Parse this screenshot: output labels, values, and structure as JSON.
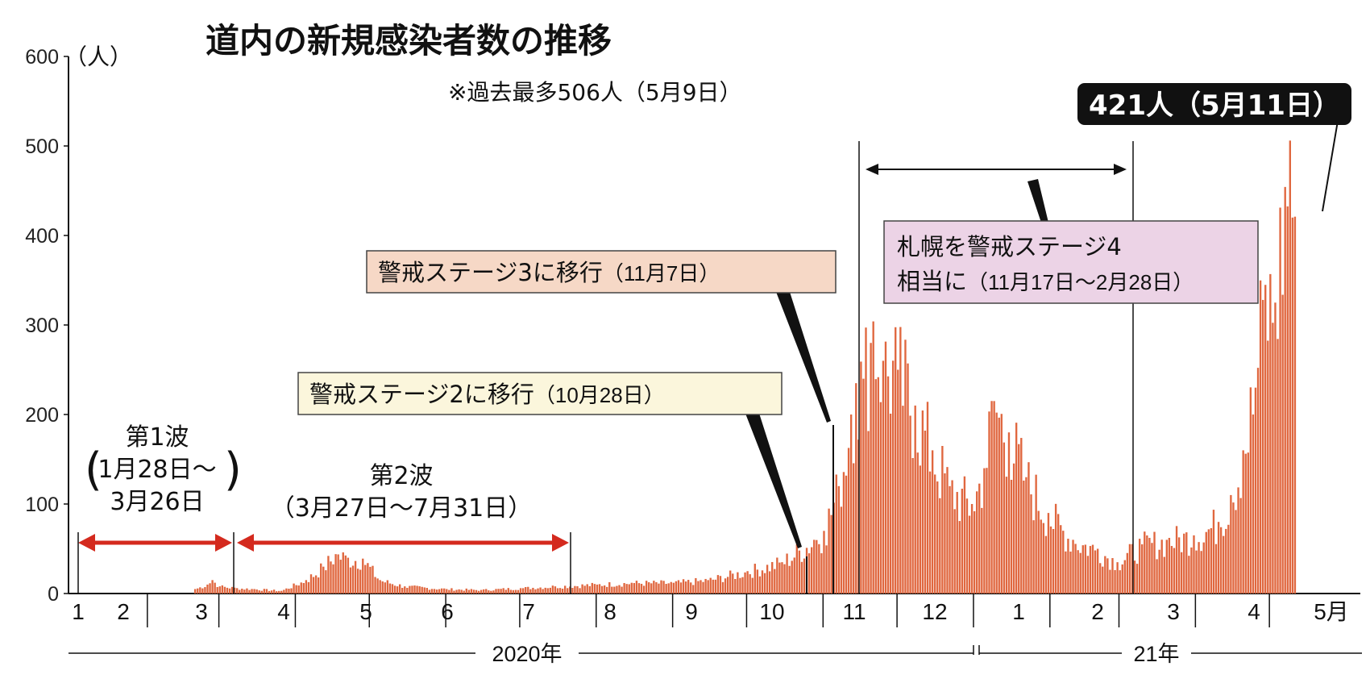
{
  "title": "道内の新規感染者数の推移",
  "unit_label": "（人）",
  "record_note": "※過去最多506人（5月9日）",
  "peak_callout": "421人（5月11日）",
  "annotations": {
    "stage2_main": "警戒ステージ2に移行",
    "stage2_date": "（10月28日）",
    "stage3_main": "警戒ステージ3に移行",
    "stage3_date": "（11月7日）",
    "stage4_line1": "札幌を警戒ステージ4",
    "stage4_line2_main": "相当に",
    "stage4_line2_date": "（11月17日～2月28日）",
    "wave1_title": "第1波",
    "wave1_range_a": "1月28日～",
    "wave1_range_b": "3月26日",
    "wave2_title": "第2波",
    "wave2_range": "（3月27日～7月31日）"
  },
  "y_ticks": [
    "0",
    "100",
    "200",
    "300",
    "400",
    "500",
    "600"
  ],
  "x_months": [
    "1",
    "2",
    "3",
    "4",
    "5",
    "6",
    "7",
    "8",
    "9",
    "10",
    "11",
    "12",
    "1",
    "2",
    "3",
    "4",
    "5月"
  ],
  "years": [
    "2020年",
    "21年"
  ],
  "colors": {
    "bar": "#e0673f",
    "arrow": "#d42a1e",
    "stage2_box": "#fbf6dc",
    "stage3_box": "#f6d8c6",
    "stage4_box": "#ecd3e6",
    "callout": "#111111"
  },
  "chart_data": {
    "type": "bar",
    "title": "道内の新規感染者数の推移",
    "ylabel": "（人）",
    "ylim": [
      0,
      600
    ],
    "y_ticks": [
      0,
      100,
      200,
      300,
      400,
      500,
      600
    ],
    "x_axis": "daily, 2020-01-28 to 2021-05-11",
    "x_start": "2020-01-01",
    "x_end": "2021-05-15",
    "series": [
      {
        "values_by_date": [
          {
            "x": "2020-02-20",
            "y": 5
          },
          {
            "x": "2020-02-25",
            "y": 10
          },
          {
            "x": "2020-02-27",
            "y": 15
          },
          {
            "x": "2020-03-01",
            "y": 8
          },
          {
            "x": "2020-03-08",
            "y": 6
          },
          {
            "x": "2020-03-15",
            "y": 5
          },
          {
            "x": "2020-03-26",
            "y": 3
          },
          {
            "x": "2020-04-05",
            "y": 15
          },
          {
            "x": "2020-04-12",
            "y": 30
          },
          {
            "x": "2020-04-17",
            "y": 44
          },
          {
            "x": "2020-04-22",
            "y": 40
          },
          {
            "x": "2020-04-28",
            "y": 39
          },
          {
            "x": "2020-05-05",
            "y": 15
          },
          {
            "x": "2020-05-15",
            "y": 8
          },
          {
            "x": "2020-06-01",
            "y": 5
          },
          {
            "x": "2020-06-15",
            "y": 4
          },
          {
            "x": "2020-07-01",
            "y": 6
          },
          {
            "x": "2020-07-15",
            "y": 8
          },
          {
            "x": "2020-08-01",
            "y": 10
          },
          {
            "x": "2020-08-15",
            "y": 12
          },
          {
            "x": "2020-09-01",
            "y": 12
          },
          {
            "x": "2020-09-15",
            "y": 15
          },
          {
            "x": "2020-10-01",
            "y": 25
          },
          {
            "x": "2020-10-15",
            "y": 35
          },
          {
            "x": "2020-10-28",
            "y": 60
          },
          {
            "x": "2020-11-01",
            "y": 70
          },
          {
            "x": "2020-11-07",
            "y": 120
          },
          {
            "x": "2020-11-12",
            "y": 200
          },
          {
            "x": "2020-11-14",
            "y": 235
          },
          {
            "x": "2020-11-17",
            "y": 240
          },
          {
            "x": "2020-11-21",
            "y": 304
          },
          {
            "x": "2020-11-25",
            "y": 260
          },
          {
            "x": "2020-12-01",
            "y": 250
          },
          {
            "x": "2020-12-08",
            "y": 210
          },
          {
            "x": "2020-12-15",
            "y": 160
          },
          {
            "x": "2020-12-22",
            "y": 120
          },
          {
            "x": "2020-12-31",
            "y": 100
          },
          {
            "x": "2021-01-05",
            "y": 140
          },
          {
            "x": "2021-01-09",
            "y": 215
          },
          {
            "x": "2021-01-15",
            "y": 180
          },
          {
            "x": "2021-01-22",
            "y": 130
          },
          {
            "x": "2021-01-31",
            "y": 90
          },
          {
            "x": "2021-02-10",
            "y": 60
          },
          {
            "x": "2021-02-20",
            "y": 50
          },
          {
            "x": "2021-02-28",
            "y": 35
          },
          {
            "x": "2021-03-10",
            "y": 55
          },
          {
            "x": "2021-03-20",
            "y": 60
          },
          {
            "x": "2021-03-31",
            "y": 65
          },
          {
            "x": "2021-04-10",
            "y": 80
          },
          {
            "x": "2021-04-15",
            "y": 110
          },
          {
            "x": "2021-04-20",
            "y": 160
          },
          {
            "x": "2021-04-25",
            "y": 230
          },
          {
            "x": "2021-04-28",
            "y": 328
          },
          {
            "x": "2021-05-03",
            "y": 325
          },
          {
            "x": "2021-05-09",
            "y": 506
          },
          {
            "x": "2021-05-10",
            "y": 420
          },
          {
            "x": "2021-05-11",
            "y": 421
          }
        ]
      }
    ],
    "annotations": [
      {
        "text": "※過去最多506人（5月9日）"
      },
      {
        "text": "421人（5月11日）"
      },
      {
        "text": "警戒ステージ2に移行（10月28日）"
      },
      {
        "text": "警戒ステージ3に移行（11月7日）"
      },
      {
        "text": "札幌を警戒ステージ4相当に（11月17日～2月28日）"
      },
      {
        "text": "第1波（1月28日～3月26日）"
      },
      {
        "text": "第2波（3月27日～7月31日）"
      }
    ],
    "grid": false,
    "legend": "none"
  }
}
